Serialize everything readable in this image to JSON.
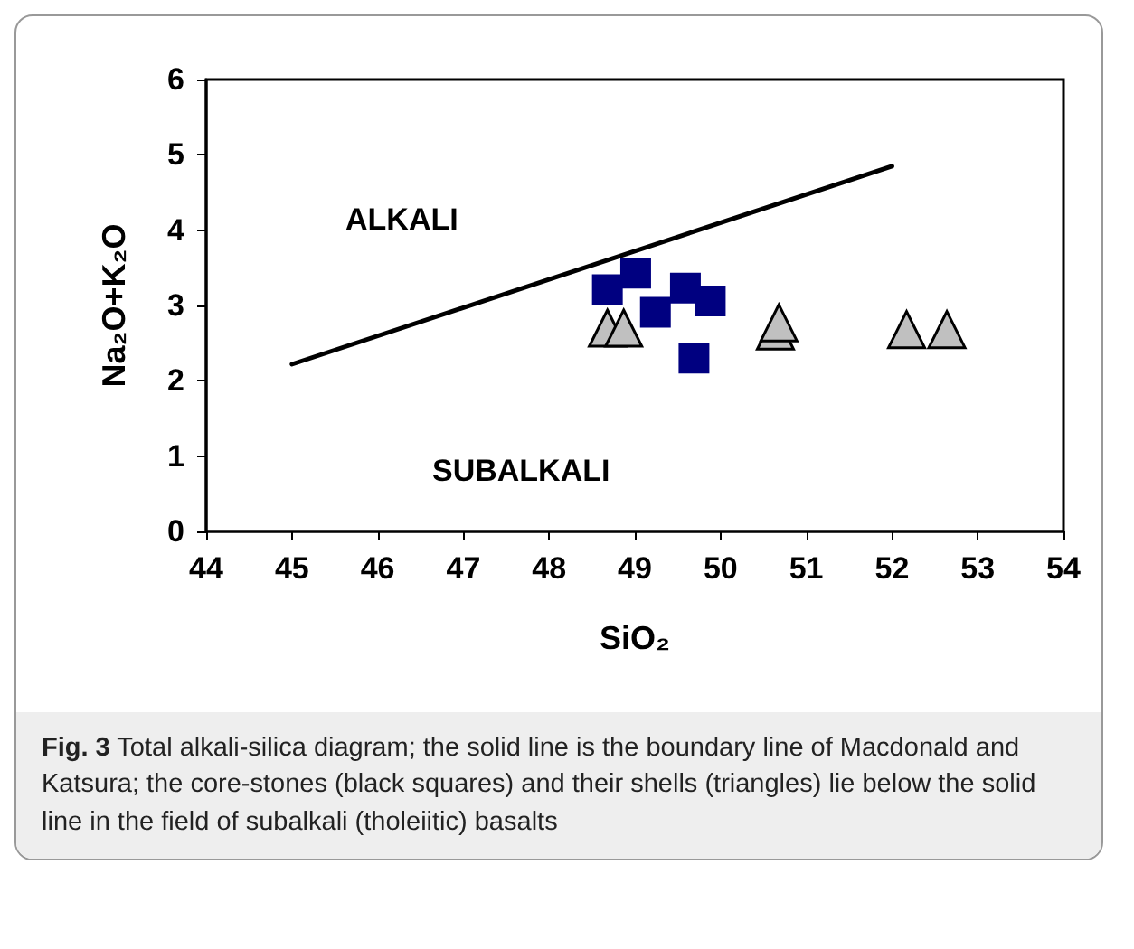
{
  "chart_data": {
    "type": "scatter",
    "xlabel": "SiO₂",
    "ylabel": "Na₂O+K₂O",
    "xlim": [
      44,
      54
    ],
    "ylim": [
      0,
      6
    ],
    "xticks": [
      44,
      45,
      46,
      47,
      48,
      49,
      50,
      51,
      52,
      53,
      54
    ],
    "yticks": [
      0,
      1,
      2,
      3,
      4,
      5,
      6
    ],
    "grid": false,
    "series": [
      {
        "marker": "square",
        "color": "#000080",
        "x": [
          48.68,
          49.01,
          49.24,
          49.59,
          49.88,
          49.69
        ],
        "values": [
          3.21,
          3.43,
          2.91,
          3.23,
          3.06,
          2.3
        ]
      },
      {
        "marker": "triangle",
        "color": "#c0c0c0",
        "x": [
          48.68,
          48.87,
          50.64,
          50.68,
          52.17,
          52.64
        ],
        "values": [
          2.7,
          2.7,
          2.66,
          2.77,
          2.68,
          2.68
        ]
      },
      {
        "type": "line",
        "marker": "none",
        "color": "#000000",
        "x": [
          45,
          52
        ],
        "values": [
          2.22,
          4.85
        ]
      }
    ],
    "annotations": [
      "ALKALI",
      "SUBALKALI",
      "Fig. 3  Total alkali-silica diagram; the solid line is the boundary line of Macdonald and Katsura; the core-stones (black squares) and their shells (triangles) lie below the solid line in the field of subalkali (tholeiitic) basalts"
    ]
  }
}
